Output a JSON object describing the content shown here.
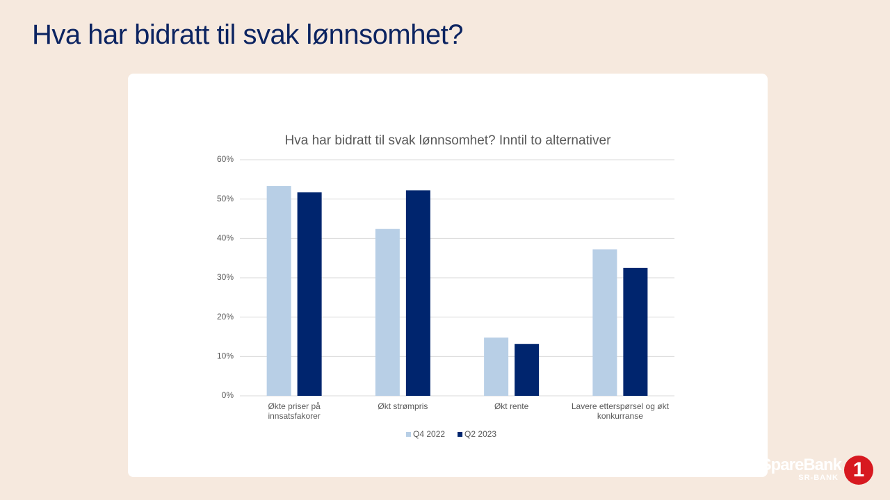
{
  "slide": {
    "title": "Hva har bidratt til svak lønnsomhet?"
  },
  "logo": {
    "name": "SpareBank",
    "subtitle": "SR-BANK",
    "badge": "1"
  },
  "chart_data": {
    "type": "bar",
    "title": "Hva har bidratt til svak lønnsomhet? Inntil to alternativer",
    "categories": [
      "Økte priser på innsatsfakorer",
      "Økt strømpris",
      "Økt rente",
      "Lavere etterspørsel og økt konkurranse"
    ],
    "series": [
      {
        "name": "Q4 2022",
        "color": "#b8cfe6",
        "values": [
          53.3,
          42.4,
          14.8,
          37.2
        ]
      },
      {
        "name": "Q2 2023",
        "color": "#00256e",
        "values": [
          51.7,
          52.2,
          13.2,
          32.5
        ]
      }
    ],
    "ylim": [
      0,
      60
    ],
    "yticks": [
      {
        "value": 0,
        "label": "0%"
      },
      {
        "value": 10,
        "label": "10%"
      },
      {
        "value": 20,
        "label": "20%"
      },
      {
        "value": 30,
        "label": "30%"
      },
      {
        "value": 40,
        "label": "40%"
      },
      {
        "value": 50,
        "label": "50%"
      },
      {
        "value": 60,
        "label": "60%"
      }
    ],
    "grid": true,
    "legend": "bottom"
  }
}
